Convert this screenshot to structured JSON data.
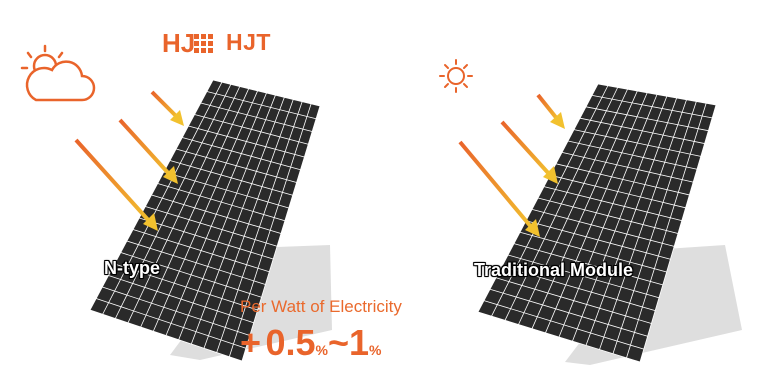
{
  "brand": {
    "logo_letters": "HJ",
    "name": "HJT"
  },
  "left": {
    "label": "N-type",
    "weather": "cloudy-sun-icon"
  },
  "right": {
    "label": "Traditional Module",
    "weather": "sun-icon"
  },
  "callout": {
    "caption": "Per Watt of Electricity",
    "prefix": "+",
    "low": "0.5",
    "low_unit": "%",
    "separator": "~",
    "high": "1",
    "high_unit": "%"
  },
  "colors": {
    "accent": "#e9642b",
    "panel": "#2a2a2a",
    "grid": "#ffffff",
    "shadow": "#dcdcdc",
    "arrow_start": "#e9642b",
    "arrow_end": "#f2c12e"
  }
}
